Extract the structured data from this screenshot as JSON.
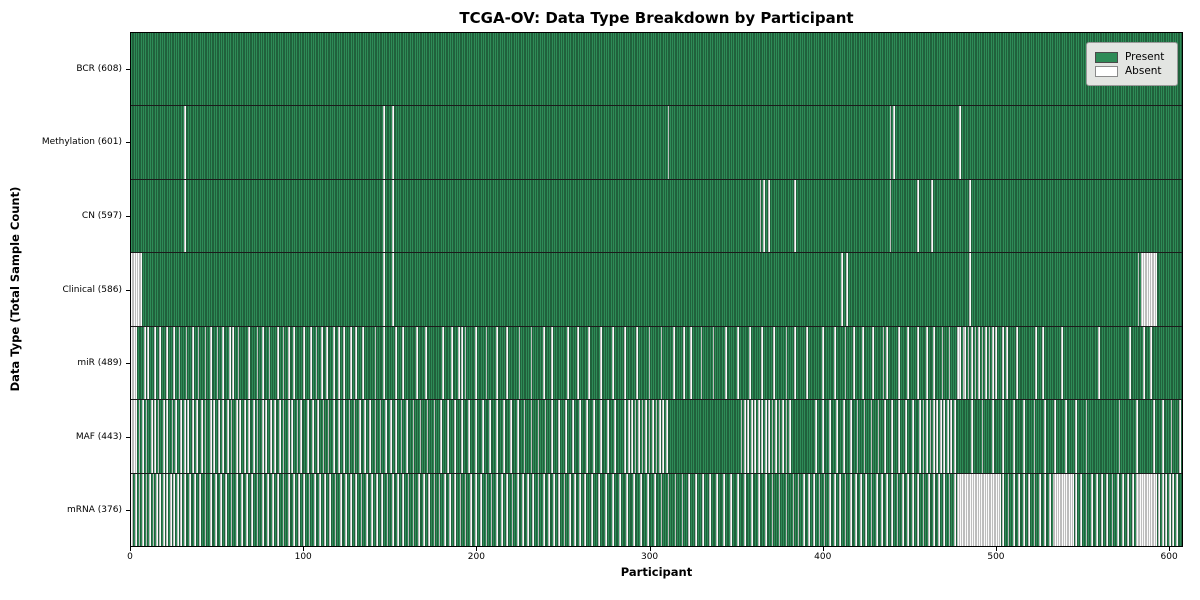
{
  "title": "TCGA-OV: Data Type Breakdown by Participant",
  "xlabel": "Participant",
  "ylabel": "Data Type (Total Sample Count)",
  "legend": {
    "present": "Present",
    "absent": "Absent"
  },
  "colors": {
    "present": "#2e8b57",
    "absent": "#fbfbfb",
    "row_divider": "#1b1b1b",
    "legend_bg": "#e3e5e2"
  },
  "chart_data": {
    "type": "heatmap",
    "title": "TCGA-OV: Data Type Breakdown by Participant",
    "xlabel": "Participant",
    "ylabel": "Data Type (Total Sample Count)",
    "legend_position": "upper right",
    "legend_entries": [
      "Present",
      "Absent"
    ],
    "grid": false,
    "xlim": [
      0,
      608
    ],
    "total_participants": 608,
    "x_ticks": [
      0,
      100,
      200,
      300,
      400,
      500,
      600
    ],
    "rows": [
      {
        "name": "BCR",
        "label": "BCR (608)",
        "present_count": 608,
        "absent_indices": []
      },
      {
        "name": "Methylation",
        "label": "Methylation (601)",
        "present_count": 601,
        "absent_indices": [
          31,
          146,
          151,
          310,
          438,
          440,
          478
        ]
      },
      {
        "name": "CN",
        "label": "CN (597)",
        "present_count": 597,
        "absent_indices": [
          31,
          146,
          151,
          363,
          365,
          368,
          383,
          438,
          454,
          462,
          484
        ]
      },
      {
        "name": "Clinical",
        "label": "Clinical (586)",
        "present_count": 586,
        "absent_indices": [
          0,
          1,
          2,
          3,
          4,
          5,
          6,
          146,
          151,
          410,
          413,
          484,
          581,
          583,
          584,
          585,
          586,
          587,
          588,
          589,
          590,
          591
        ]
      },
      {
        "name": "miR",
        "label": "miR (489)",
        "present_count": 489,
        "absent_indices": [
          0,
          1,
          2,
          3,
          8,
          10,
          14,
          17,
          21,
          25,
          28,
          32,
          36,
          39,
          43,
          46,
          50,
          53,
          57,
          59,
          62,
          68,
          73,
          76,
          80,
          85,
          88,
          91,
          94,
          100,
          104,
          107,
          110,
          113,
          117,
          120,
          123,
          127,
          130,
          134,
          141,
          146,
          153,
          157,
          165,
          170,
          180,
          185,
          189,
          191,
          193,
          199,
          205,
          211,
          217,
          224,
          231,
          238,
          243,
          252,
          258,
          264,
          271,
          278,
          285,
          292,
          299,
          306,
          313,
          319,
          323,
          329,
          336,
          343,
          350,
          357,
          364,
          371,
          378,
          383,
          390,
          399,
          406,
          412,
          417,
          422,
          428,
          434,
          436,
          443,
          448,
          454,
          459,
          463,
          468,
          472,
          477,
          478,
          480,
          481,
          483,
          485,
          487,
          489,
          491,
          493,
          495,
          497,
          499,
          503,
          505,
          511,
          522,
          526,
          537,
          558,
          576,
          584,
          588
        ]
      },
      {
        "name": "MAF",
        "label": "MAF (443)",
        "present_count": 443,
        "absent_indices": [
          0,
          1,
          2,
          3,
          5,
          7,
          9,
          12,
          14,
          16,
          19,
          21,
          24,
          26,
          29,
          31,
          33,
          36,
          38,
          41,
          43,
          46,
          48,
          51,
          53,
          56,
          58,
          61,
          63,
          66,
          68,
          71,
          73,
          76,
          78,
          81,
          83,
          86,
          88,
          91,
          93,
          96,
          98,
          102,
          105,
          108,
          111,
          114,
          117,
          120,
          123,
          126,
          129,
          132,
          135,
          138,
          141,
          144,
          147,
          150,
          153,
          156,
          159,
          163,
          167,
          171,
          175,
          179,
          183,
          187,
          191,
          195,
          199,
          203,
          207,
          211,
          215,
          219,
          223,
          227,
          231,
          235,
          239,
          243,
          247,
          251,
          255,
          259,
          263,
          267,
          271,
          275,
          279,
          285,
          287,
          289,
          291,
          293,
          295,
          297,
          299,
          301,
          303,
          305,
          307,
          309,
          352,
          354,
          356,
          358,
          360,
          362,
          364,
          366,
          368,
          370,
          372,
          374,
          376,
          378,
          380,
          395,
          399,
          403,
          407,
          411,
          415,
          419,
          423,
          427,
          431,
          435,
          439,
          443,
          447,
          451,
          455,
          457,
          459,
          461,
          463,
          465,
          467,
          469,
          471,
          473,
          475,
          485,
          491,
          497,
          503,
          509,
          515,
          521,
          527,
          533,
          539,
          545,
          551,
          570,
          580,
          590,
          595,
          600,
          605
        ]
      },
      {
        "name": "mRNA",
        "label": "mRNA (376)",
        "present_count": 376,
        "absent_indices": [
          0,
          1,
          3,
          5,
          7,
          9,
          11,
          13,
          15,
          17,
          19,
          21,
          23,
          25,
          27,
          29,
          31,
          34,
          37,
          40,
          43,
          46,
          49,
          52,
          55,
          58,
          61,
          64,
          67,
          70,
          73,
          76,
          79,
          82,
          85,
          88,
          91,
          94,
          97,
          100,
          103,
          106,
          109,
          112,
          115,
          118,
          121,
          124,
          127,
          130,
          133,
          136,
          139,
          142,
          145,
          148,
          151,
          154,
          157,
          160,
          163,
          166,
          169,
          172,
          175,
          178,
          181,
          184,
          187,
          190,
          193,
          196,
          199,
          202,
          205,
          208,
          211,
          214,
          217,
          220,
          223,
          226,
          229,
          232,
          235,
          238,
          241,
          244,
          247,
          250,
          253,
          256,
          259,
          262,
          266,
          270,
          274,
          278,
          282,
          286,
          290,
          294,
          298,
          302,
          306,
          310,
          314,
          318,
          322,
          326,
          330,
          334,
          338,
          342,
          346,
          350,
          354,
          358,
          362,
          366,
          370,
          374,
          378,
          382,
          385,
          388,
          391,
          394,
          397,
          400,
          403,
          406,
          409,
          412,
          415,
          418,
          421,
          424,
          427,
          430,
          433,
          436,
          439,
          442,
          445,
          448,
          451,
          454,
          457,
          460,
          463,
          466,
          469,
          472,
          475,
          477,
          478,
          479,
          480,
          481,
          482,
          483,
          484,
          485,
          486,
          487,
          488,
          489,
          490,
          491,
          492,
          493,
          494,
          495,
          496,
          497,
          498,
          499,
          500,
          501,
          503,
          506,
          509,
          512,
          515,
          518,
          521,
          524,
          527,
          530,
          532,
          533,
          534,
          535,
          536,
          537,
          538,
          539,
          540,
          541,
          542,
          543,
          545,
          548,
          551,
          554,
          557,
          560,
          563,
          566,
          569,
          572,
          575,
          578,
          580,
          581,
          582,
          583,
          584,
          585,
          586,
          587,
          588,
          589,
          590,
          591,
          593,
          595,
          597,
          599,
          601,
          603
        ]
      }
    ]
  }
}
